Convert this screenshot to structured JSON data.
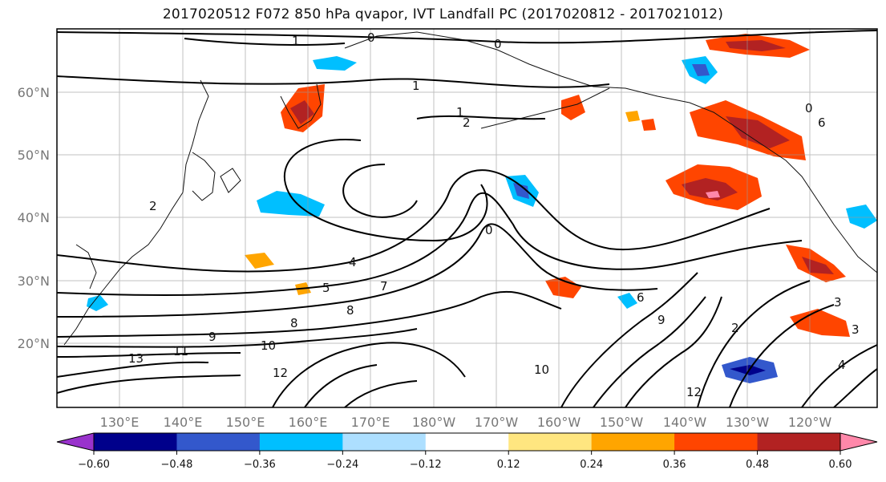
{
  "title": "2017020512 F072 850 hPa qvapor, IVT Landfall PC (2017020812 - 2017021012)",
  "map": {
    "lat_labels": [
      "60°N",
      "50°N",
      "40°N",
      "30°N",
      "20°N"
    ],
    "lon_labels": [
      "130°E",
      "140°E",
      "150°E",
      "160°E",
      "170°E",
      "180°W",
      "170°W",
      "160°W",
      "150°W",
      "140°W",
      "130°W",
      "120°W"
    ],
    "contour_labels": [
      "1",
      "0",
      "0",
      "1",
      "1",
      "2",
      "0",
      "2",
      "4",
      "5",
      "7",
      "8",
      "8",
      "9",
      "10",
      "11",
      "13",
      "12",
      "6",
      "9",
      "10",
      "12",
      "2",
      "3",
      "4",
      "3",
      "6",
      "0"
    ]
  },
  "colorbar": {
    "colors": [
      "#9932CC",
      "#00008B",
      "#3358CC",
      "#00BFFF",
      "#ADDFFF",
      "#FFFFFF",
      "#FFE680",
      "#FFA500",
      "#FF4500",
      "#B22222",
      "#FF88AA"
    ],
    "ticks": [
      "−0.60",
      "−0.48",
      "−0.36",
      "−0.24",
      "−0.12",
      "0.12",
      "0.24",
      "0.36",
      "0.48",
      "0.60"
    ]
  }
}
